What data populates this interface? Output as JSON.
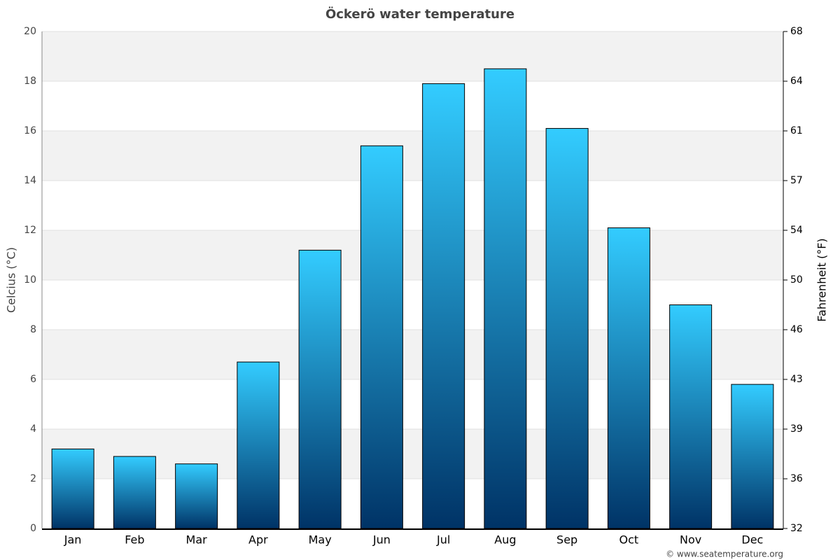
{
  "chart_data": {
    "type": "bar",
    "title": "Öckerö water temperature",
    "y_label": "Celcius (°C)",
    "y2_label": "Fahrenheit (°F)",
    "source": "© www.seatemperature.org",
    "categories": [
      "Jan",
      "Feb",
      "Mar",
      "Apr",
      "May",
      "Jun",
      "Jul",
      "Aug",
      "Sep",
      "Oct",
      "Nov",
      "Dec"
    ],
    "values": [
      3.2,
      2.9,
      2.6,
      6.7,
      11.2,
      15.4,
      17.9,
      18.5,
      16.1,
      12.1,
      9.0,
      5.8
    ],
    "color": [
      "#33ccff",
      "#003366"
    ],
    "ylim": [
      0,
      20
    ],
    "yticks": [
      0,
      2,
      4,
      6,
      8,
      10,
      12,
      14,
      16,
      18,
      20
    ],
    "y2lim": [
      32,
      68
    ],
    "y2ticks": [
      32,
      {
        "value": 35.6,
        "label": "36"
      },
      {
        "value": 39.2,
        "label": "39"
      },
      {
        "value": 42.8,
        "label": "43"
      },
      {
        "value": 46.4,
        "label": "46"
      },
      50,
      {
        "value": 53.6,
        "label": "54"
      },
      {
        "value": 57.2,
        "label": "57"
      },
      {
        "value": 60.8,
        "label": "61"
      },
      {
        "value": 64.4,
        "label": "64"
      },
      68
    ],
    "grid": true,
    "banded_background": true
  }
}
